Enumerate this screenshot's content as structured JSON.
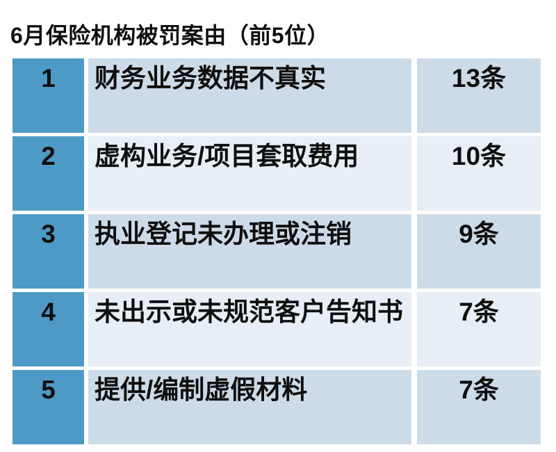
{
  "page_title": "6月保险机构被罚案由（前5位）",
  "chart_data": {
    "type": "table",
    "title": "6月保险机构被罚案由（前5位）",
    "unit": "条",
    "categories": [
      "财务业务数据不真实",
      "虚构业务/项目套取费用",
      "执业登记未办理或注销",
      "未出示或未规范客户告知书",
      "提供/编制虚假材料"
    ],
    "values": [
      13,
      10,
      9,
      7,
      7
    ],
    "rows": [
      {
        "rank": "1",
        "reason": "财务业务数据不真实",
        "count": "13条"
      },
      {
        "rank": "2",
        "reason": "虚构业务/项目套取费用",
        "count": "10条"
      },
      {
        "rank": "3",
        "reason": "执业登记未办理或注销",
        "count": "9条"
      },
      {
        "rank": "4",
        "reason": "未出示或未规范客户告知书",
        "count": "7条"
      },
      {
        "rank": "5",
        "reason": "提供/编制虚假材料",
        "count": "7条"
      }
    ]
  },
  "colors": {
    "rank_cell": "#4e9ac7",
    "row_odd": "#cddbe8",
    "row_even": "#e7eef5",
    "page_background": "#ffffff",
    "text": "#0f0f0f"
  }
}
